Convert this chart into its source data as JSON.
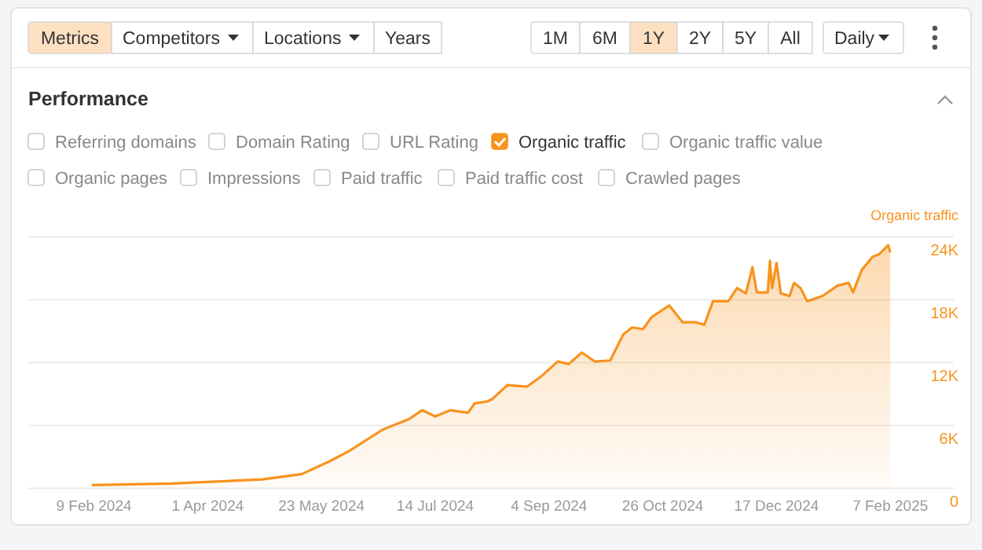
{
  "chart_data": {
    "type": "area",
    "title": "Performance",
    "ylabel": "Organic traffic",
    "annotations": [
      "Metrics",
      "Competitors",
      "Locations",
      "Years",
      "1M",
      "6M",
      "1Y",
      "2Y",
      "5Y",
      "All",
      "Daily",
      "Referring domains",
      "Domain Rating",
      "URL Rating",
      "Organic traffic",
      "Organic traffic value",
      "Organic pages",
      "Impressions",
      "Paid traffic",
      "Paid traffic cost",
      "Crawled pages"
    ],
    "x": [
      "2024-02-08",
      "2024-03-16",
      "2024-04-26",
      "2024-05-14",
      "2024-05-27",
      "2024-06-05",
      "2024-06-20",
      "2024-07-02",
      "2024-07-08",
      "2024-07-14",
      "2024-07-21",
      "2024-07-29",
      "2024-08-01",
      "2024-08-07",
      "2024-08-09",
      "2024-08-16",
      "2024-08-25",
      "2024-08-31",
      "2024-09-08",
      "2024-09-13",
      "2024-09-19",
      "2024-09-25",
      "2024-10-02",
      "2024-10-08",
      "2024-10-12",
      "2024-10-17",
      "2024-10-21",
      "2024-10-29",
      "2024-11-04",
      "2024-11-10",
      "2024-11-14",
      "2024-11-18",
      "2024-11-25",
      "2024-11-29",
      "2024-12-03",
      "2024-12-06",
      "2024-12-08",
      "2024-12-13",
      "2024-12-14",
      "2024-12-15",
      "2024-12-17",
      "2024-12-19",
      "2024-12-23",
      "2024-12-25",
      "2024-12-28",
      "2024-12-31",
      "2025-01-07",
      "2025-01-14",
      "2025-01-19",
      "2025-01-21",
      "2025-01-25",
      "2025-01-30",
      "2025-02-02",
      "2025-02-06",
      "2025-02-07"
    ],
    "series": [
      {
        "color": "#f7931e",
        "values": [
          300,
          450,
          850,
          1350,
          2600,
          3600,
          5600,
          6600,
          7450,
          6850,
          7450,
          7200,
          8100,
          8300,
          8500,
          9850,
          9700,
          10600,
          12100,
          11850,
          12950,
          12100,
          12200,
          14700,
          15350,
          15200,
          16350,
          17450,
          15850,
          15850,
          15600,
          17850,
          17850,
          19100,
          18600,
          21100,
          18700,
          18700,
          21700,
          19100,
          21500,
          18600,
          18350,
          19600,
          19100,
          17850,
          18350,
          19350,
          19600,
          18700,
          20850,
          22100,
          22350,
          23200,
          22500
        ]
      }
    ],
    "xlim": [
      "2024-01-10",
      "2025-03-08"
    ],
    "xticks": [
      {
        "value": "2024-02-09",
        "label": "9 Feb 2024"
      },
      {
        "value": "2024-04-01",
        "label": "1 Apr 2024"
      },
      {
        "value": "2024-05-23",
        "label": "23 May 2024"
      },
      {
        "value": "2024-07-14",
        "label": "14 Jul 2024"
      },
      {
        "value": "2024-09-04",
        "label": "4 Sep 2024"
      },
      {
        "value": "2024-10-26",
        "label": "26 Oct 2024"
      },
      {
        "value": "2024-12-17",
        "label": "17 Dec 2024"
      },
      {
        "value": "2025-02-07",
        "label": "7 Feb 2025"
      }
    ],
    "ylim": [
      0,
      24000
    ],
    "yticks": [
      0,
      {
        "value": 6000,
        "label": "6K"
      },
      {
        "value": 12000,
        "label": "12K"
      },
      {
        "value": 18000,
        "label": "18K"
      },
      {
        "value": 24000,
        "label": "24K"
      }
    ],
    "grid": "y",
    "marker": "none",
    "line_style": "solid"
  }
}
